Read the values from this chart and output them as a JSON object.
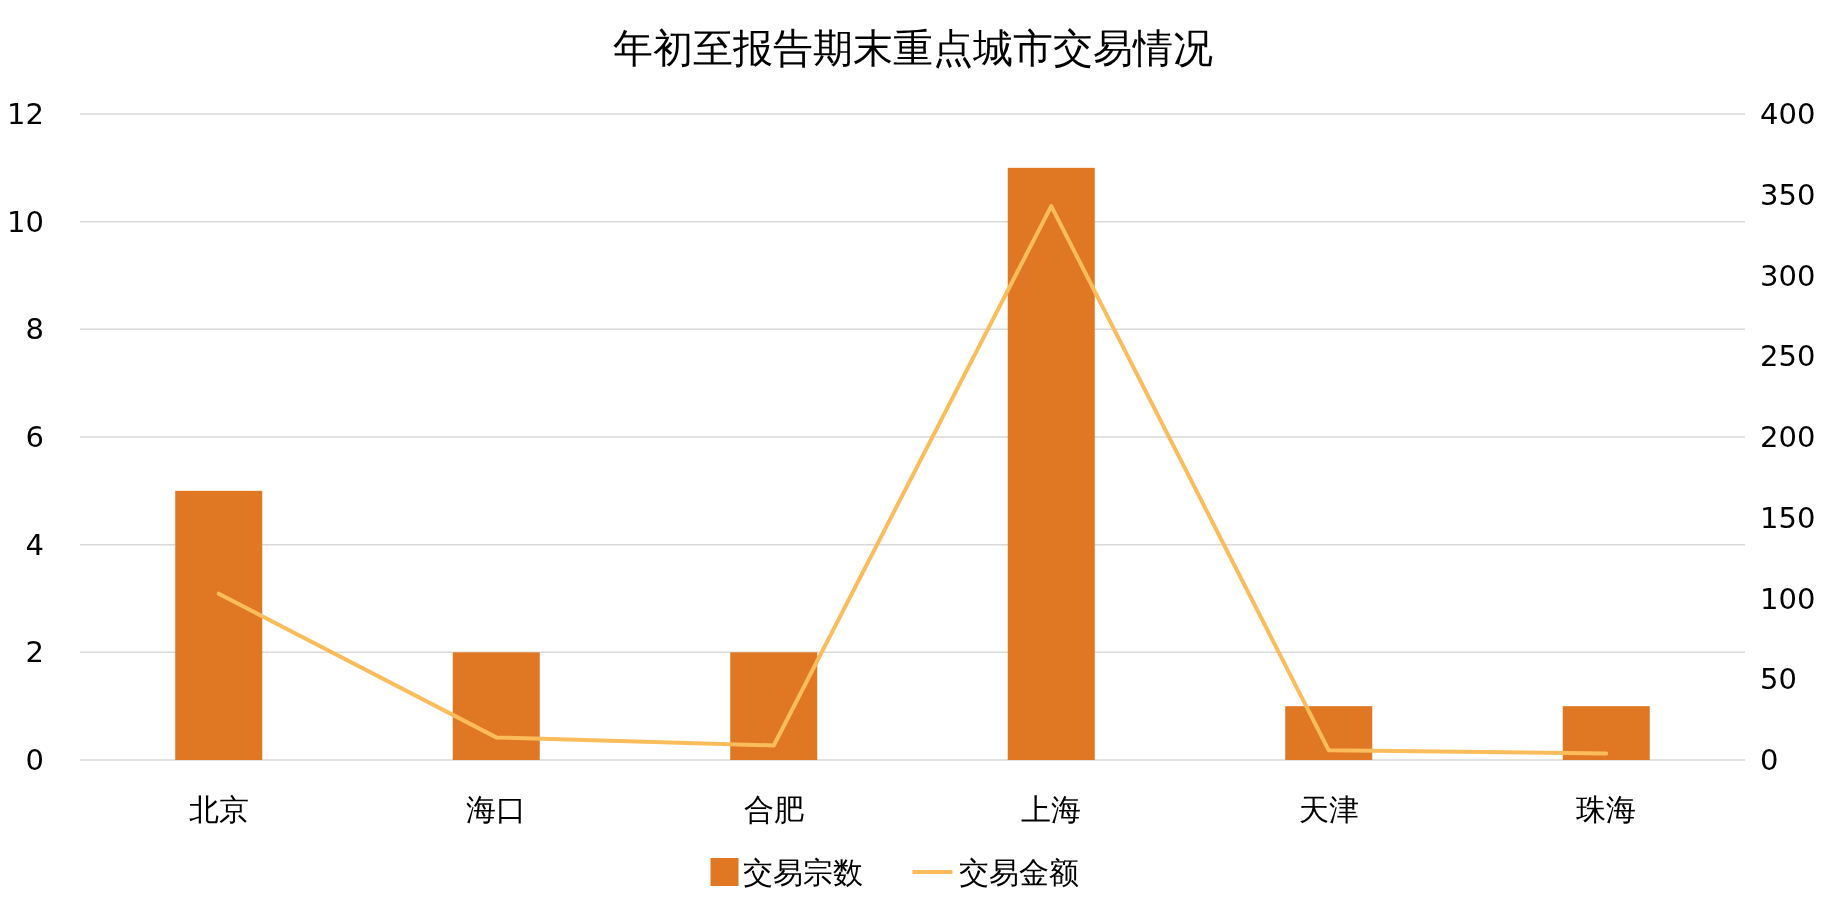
{
  "chart_data": {
    "type": "bar",
    "title": "年初至报告期末重点城市交易情况",
    "categories": [
      "北京",
      "海口",
      "合肥",
      "上海",
      "天津",
      "珠海"
    ],
    "series": [
      {
        "name": "交易宗数",
        "color": "#e07722",
        "values": [
          5,
          2,
          2,
          11,
          1,
          1
        ]
      },
      {
        "name": "交易金额",
        "type": "line",
        "axis": "y2",
        "color": "#fbbd5c",
        "values": [
          103,
          14,
          9,
          343,
          6,
          4
        ]
      }
    ],
    "ylim": [
      0,
      12
    ],
    "yticks": [
      0,
      2,
      4,
      6,
      8,
      10,
      12
    ],
    "y2lim": [
      0,
      400
    ],
    "y2ticks": [
      0,
      50,
      100,
      150,
      200,
      250,
      300,
      350,
      400
    ],
    "grid": "y",
    "legend": "bottom",
    "marker": "none"
  }
}
